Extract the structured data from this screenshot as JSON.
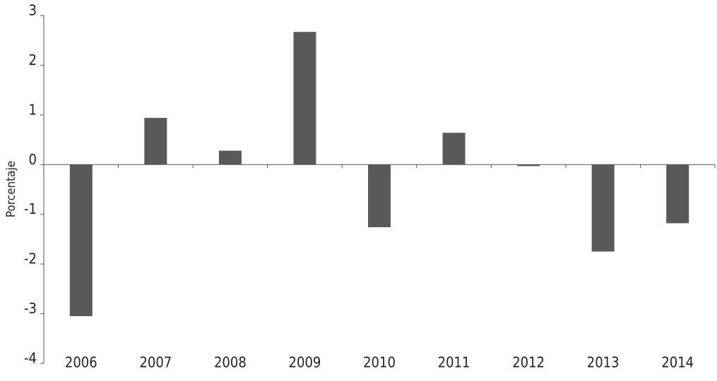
{
  "chart_data": {
    "type": "bar",
    "y_label": "Porcentaje",
    "categories": [
      "2006",
      "2007",
      "2008",
      "2009",
      "2010",
      "2011",
      "2012",
      "2013",
      "2014"
    ],
    "values": [
      -3.05,
      0.94,
      0.28,
      2.67,
      -1.26,
      0.64,
      -0.03,
      -1.75,
      -1.18
    ],
    "color": "#595959",
    "ylim": [
      -4,
      3
    ],
    "yticks": [
      -4,
      -3,
      -2,
      -1,
      0,
      1,
      2,
      3
    ],
    "grid": false
  }
}
